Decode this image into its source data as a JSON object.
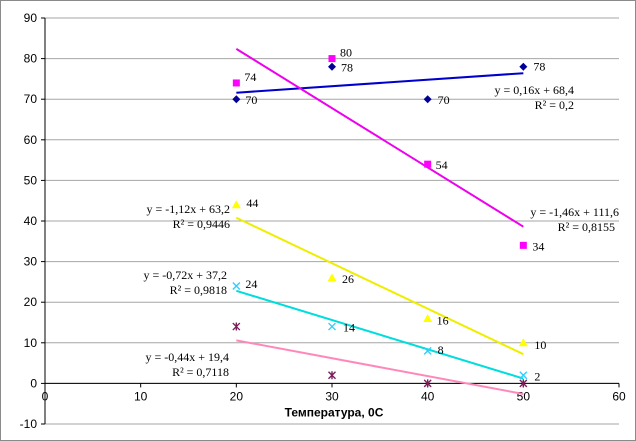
{
  "chart_data": {
    "type": "scatter",
    "xlabel": "Температура, 0С",
    "ylabel": "",
    "xlim": [
      0,
      60
    ],
    "ylim": [
      -10,
      90
    ],
    "xticks": [
      0,
      10,
      20,
      30,
      40,
      50,
      60
    ],
    "yticks": [
      -10,
      0,
      10,
      20,
      30,
      40,
      50,
      60,
      70,
      80,
      90
    ],
    "grid": "horizontal",
    "legend": "none",
    "series": [
      {
        "id": "blue",
        "color": "#000099",
        "line_color": "#0000cc",
        "marker": "diamond",
        "x": [
          20,
          30,
          40,
          50
        ],
        "y": [
          70,
          78,
          70,
          78
        ],
        "labels": [
          "70",
          "78",
          "70",
          "78"
        ],
        "trend": {
          "slope": 0.16,
          "intercept": 68.4,
          "x0": 20,
          "x1": 50
        },
        "equation": "y = 0,16x + 68,4",
        "r2": "R² = 0,2"
      },
      {
        "id": "magenta",
        "color": "#ff00ff",
        "line_color": "#ee00ee",
        "marker": "square",
        "x": [
          20,
          30,
          40,
          50
        ],
        "y": [
          74,
          80,
          54,
          34
        ],
        "labels": [
          "74",
          "80",
          "54",
          "34"
        ],
        "trend": {
          "slope": -1.46,
          "intercept": 111.6,
          "x0": 20,
          "x1": 50
        },
        "equation": "y = -1,46x + 111,6",
        "r2": "R² = 0,8155"
      },
      {
        "id": "yellow",
        "color": "#ffff00",
        "line_color": "#eeee00",
        "marker": "triangle",
        "x": [
          20,
          30,
          40,
          50
        ],
        "y": [
          44,
          26,
          16,
          10
        ],
        "labels": [
          "44",
          "26",
          "16",
          "10"
        ],
        "trend": {
          "slope": -1.12,
          "intercept": 63.2,
          "x0": 20,
          "x1": 50
        },
        "equation": "y = -1,12x + 63,2",
        "r2": "R² = 0,9446"
      },
      {
        "id": "cyan",
        "color": "#33ccff",
        "line_color": "#00dddd",
        "marker": "x",
        "x": [
          20,
          30,
          40,
          50
        ],
        "y": [
          24,
          14,
          8,
          2
        ],
        "labels": [
          "24",
          "14",
          "8",
          "2"
        ],
        "trend": {
          "slope": -0.72,
          "intercept": 37.2,
          "x0": 20,
          "x1": 50
        },
        "equation": "y = -0,72x + 37,2",
        "r2": "R² = 0,9818"
      },
      {
        "id": "pink",
        "color": "#7a1f5c",
        "line_color": "#ff88bb",
        "marker": "star",
        "x": [
          20,
          30,
          40,
          50
        ],
        "y": [
          14,
          2,
          0,
          0
        ],
        "labels": [],
        "trend": {
          "slope": -0.44,
          "intercept": 19.4,
          "x0": 20,
          "x1": 50
        },
        "equation": "y = -0,44x + 19,4",
        "r2": "R² = 0,7118"
      }
    ]
  }
}
